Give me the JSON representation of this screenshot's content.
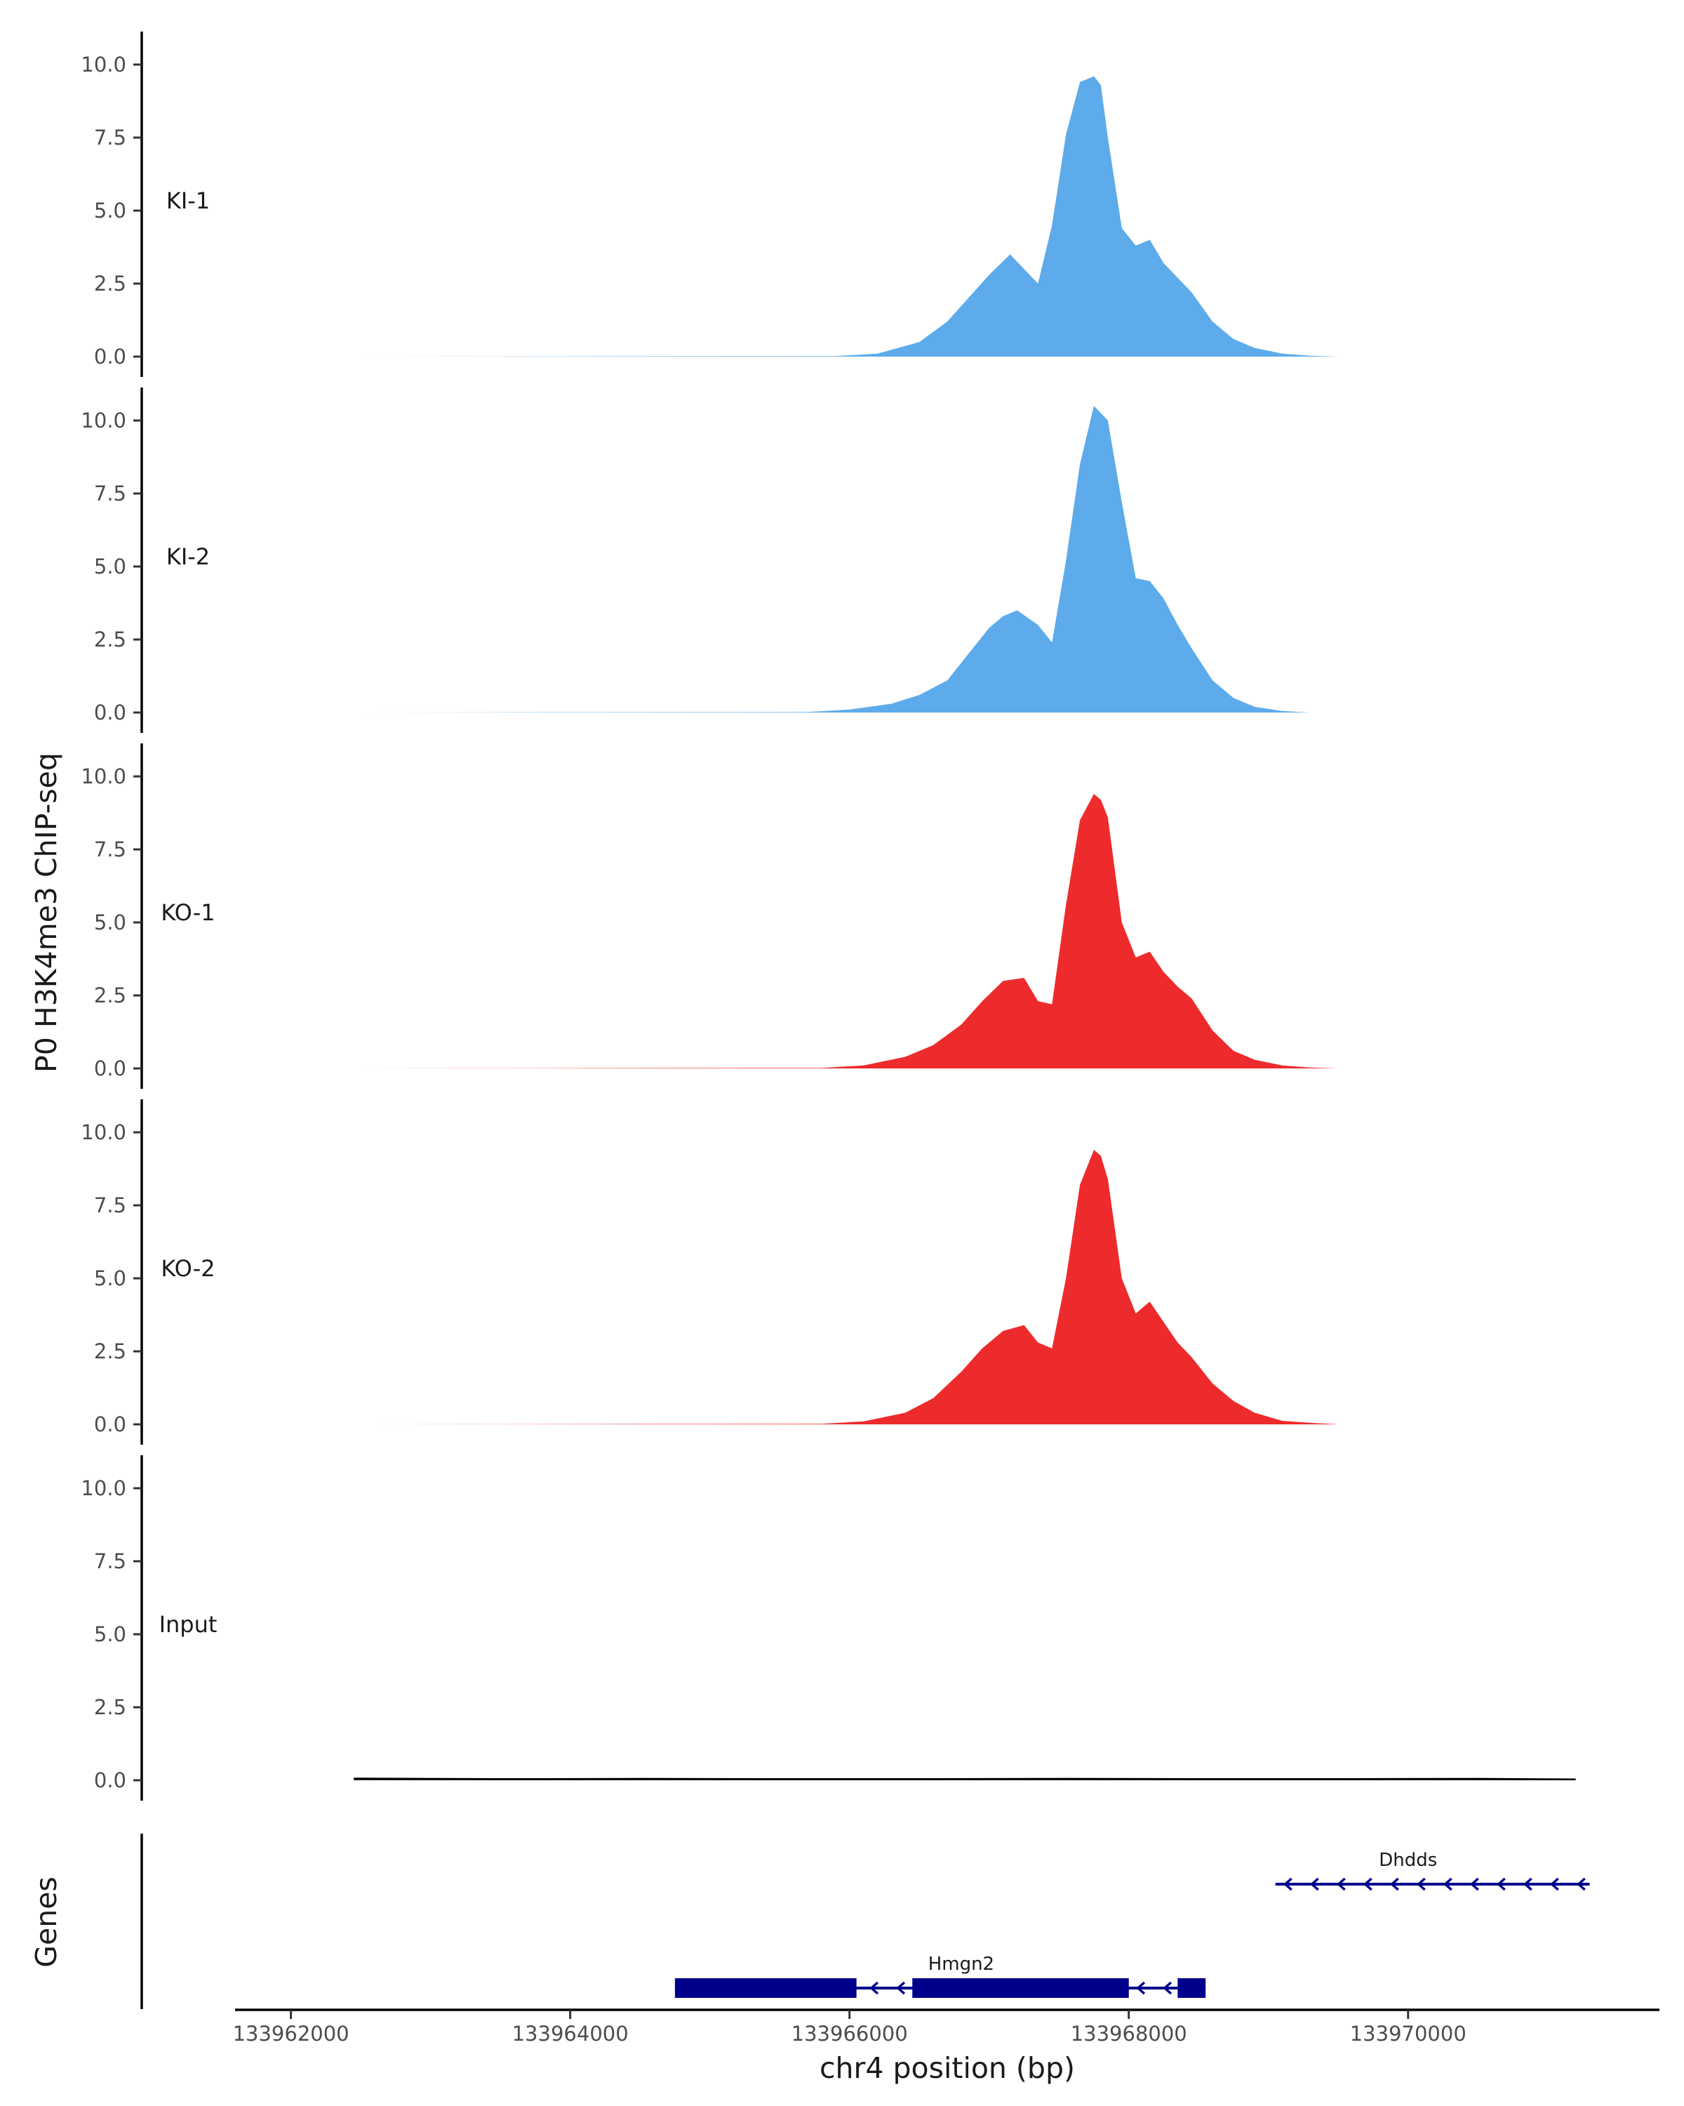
{
  "chart_data": {
    "type": "area",
    "ylabel": "P0 H3K4me3 ChIP-seq",
    "xlabel": "chr4 position (bp)",
    "ylim": [
      0,
      11
    ],
    "yticks": [
      0,
      2.5,
      5,
      7.5,
      10
    ],
    "ytick_labels": [
      "0.0",
      "2.5",
      "5.0",
      "7.5",
      "10.0"
    ],
    "xlim": [
      133961600,
      133971800
    ],
    "xticks": [
      133962000,
      133964000,
      133966000,
      133968000,
      133970000
    ],
    "xtick_labels": [
      "133962000",
      "133964000",
      "133966000",
      "133968000",
      "133970000"
    ],
    "grid": false,
    "tracks": [
      {
        "name": "KI-1",
        "color": "#5dabea",
        "x": [
          133962450,
          133965900,
          133966200,
          133966500,
          133966700,
          133966850,
          133967000,
          133967150,
          133967250,
          133967350,
          133967450,
          133967550,
          133967650,
          133967750,
          133967800,
          133967850,
          133967950,
          133968050,
          133968150,
          133968250,
          133968350,
          133968450,
          133968600,
          133968750,
          133968900,
          133969100,
          133969300,
          133969500,
          133970300
        ],
        "values": [
          0,
          0.02,
          0.1,
          0.5,
          1.2,
          2.0,
          2.8,
          3.5,
          3.0,
          2.5,
          4.5,
          7.6,
          9.4,
          9.6,
          9.3,
          7.5,
          4.4,
          3.8,
          4.0,
          3.2,
          2.7,
          2.2,
          1.2,
          0.6,
          0.3,
          0.1,
          0.03,
          0,
          0
        ]
      },
      {
        "name": "KI-2",
        "color": "#5dabea",
        "x": [
          133962450,
          133965700,
          133966000,
          133966300,
          133966500,
          133966700,
          133966850,
          133967000,
          133967100,
          133967200,
          133967350,
          133967450,
          133967550,
          133967650,
          133967750,
          133967850,
          133967950,
          133968050,
          133968150,
          133968250,
          133968350,
          133968450,
          133968600,
          133968750,
          133968900,
          133969100,
          133969300,
          133969500,
          133971200
        ],
        "values": [
          0,
          0.02,
          0.1,
          0.3,
          0.6,
          1.1,
          2.0,
          2.9,
          3.3,
          3.5,
          3.0,
          2.4,
          5.2,
          8.5,
          10.5,
          10.0,
          7.2,
          4.6,
          4.5,
          3.9,
          3.0,
          2.2,
          1.1,
          0.5,
          0.2,
          0.05,
          0,
          0,
          0
        ]
      },
      {
        "name": "KO-1",
        "color": "#ee2b2c",
        "x": [
          133962450,
          133965800,
          133966100,
          133966400,
          133966600,
          133966800,
          133966950,
          133967100,
          133967250,
          133967350,
          133967450,
          133967550,
          133967650,
          133967750,
          133967800,
          133967850,
          133967950,
          133968050,
          133968150,
          133968250,
          133968350,
          133968450,
          133968600,
          133968750,
          133968900,
          133969100,
          133969300,
          133969500,
          133971000
        ],
        "values": [
          0,
          0.02,
          0.1,
          0.4,
          0.8,
          1.5,
          2.3,
          3.0,
          3.1,
          2.3,
          2.2,
          5.6,
          8.5,
          9.4,
          9.2,
          8.6,
          5.0,
          3.8,
          4.0,
          3.3,
          2.8,
          2.4,
          1.3,
          0.6,
          0.3,
          0.1,
          0.03,
          0,
          0
        ]
      },
      {
        "name": "KO-2",
        "color": "#ee2b2c",
        "x": [
          133962550,
          133965800,
          133966100,
          133966400,
          133966600,
          133966800,
          133966950,
          133967100,
          133967250,
          133967350,
          133967450,
          133967550,
          133967650,
          133967750,
          133967800,
          133967850,
          133967950,
          133968050,
          133968150,
          133968250,
          133968350,
          133968450,
          133968600,
          133968750,
          133968900,
          133969100,
          133969300,
          133969500,
          133971200
        ],
        "values": [
          0,
          0.02,
          0.1,
          0.4,
          0.9,
          1.8,
          2.6,
          3.2,
          3.4,
          2.8,
          2.6,
          5.0,
          8.2,
          9.4,
          9.2,
          8.4,
          5.0,
          3.8,
          4.2,
          3.5,
          2.8,
          2.3,
          1.4,
          0.8,
          0.4,
          0.12,
          0.05,
          0,
          0
        ]
      },
      {
        "name": "Input",
        "color": "#000000",
        "x": [
          133962450,
          133963500,
          133964500,
          133965500,
          133966500,
          133967500,
          133968500,
          133969500,
          133970500,
          133971200
        ],
        "values": [
          0.06,
          0.04,
          0.05,
          0.04,
          0.04,
          0.05,
          0.04,
          0.04,
          0.05,
          0.03
        ]
      }
    ],
    "genes_track": {
      "label": "Genes",
      "color": "#00008b",
      "genes": [
        {
          "name": "Hmgn2",
          "start": 133964750,
          "end": 133968550,
          "strand": "-",
          "exons": [
            [
              133964750,
              133966050
            ],
            [
              133966450,
              133968000
            ],
            [
              133968350,
              133968550
            ]
          ]
        },
        {
          "name": "Dhdds",
          "start": 133969050,
          "end": 133971300,
          "strand": "-",
          "exons": []
        }
      ]
    }
  }
}
